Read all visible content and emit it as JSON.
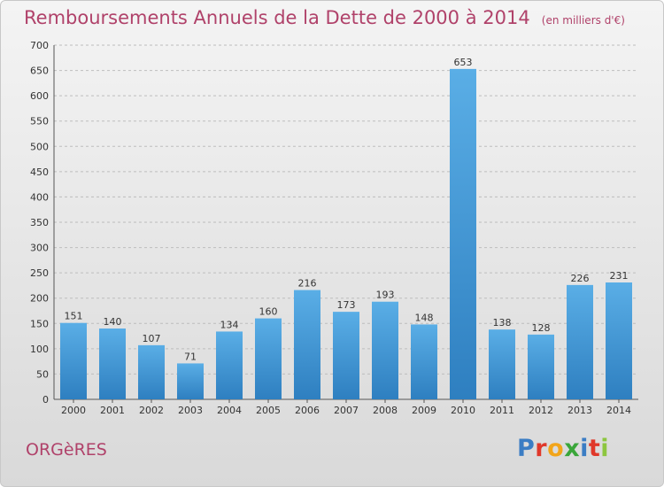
{
  "header": {
    "title": "Remboursements Annuels de la Dette de 2000 à 2014",
    "unit": "(en milliers d'€)"
  },
  "footer": {
    "commune": "ORGèRES",
    "logo_text": "Proxiti"
  },
  "colors": {
    "title": "#b0426a",
    "bar_top": "#5aaee6",
    "bar_bottom": "#2e7fc0",
    "gridline": "#bdbdbd"
  },
  "chart_data": {
    "type": "bar",
    "title": "Remboursements Annuels de la Dette de 2000 à 2014",
    "subtitle": "(en milliers d'€)",
    "categories": [
      "2000",
      "2001",
      "2002",
      "2003",
      "2004",
      "2005",
      "2006",
      "2007",
      "2008",
      "2009",
      "2010",
      "2011",
      "2012",
      "2013",
      "2014"
    ],
    "values": [
      151,
      140,
      107,
      71,
      134,
      160,
      216,
      173,
      193,
      148,
      653,
      138,
      128,
      226,
      231
    ],
    "ylim": [
      0,
      700
    ],
    "yticks": [
      0,
      50,
      100,
      150,
      200,
      250,
      300,
      350,
      400,
      450,
      500,
      550,
      600,
      650,
      700
    ],
    "grid": true,
    "data_labels": true
  }
}
